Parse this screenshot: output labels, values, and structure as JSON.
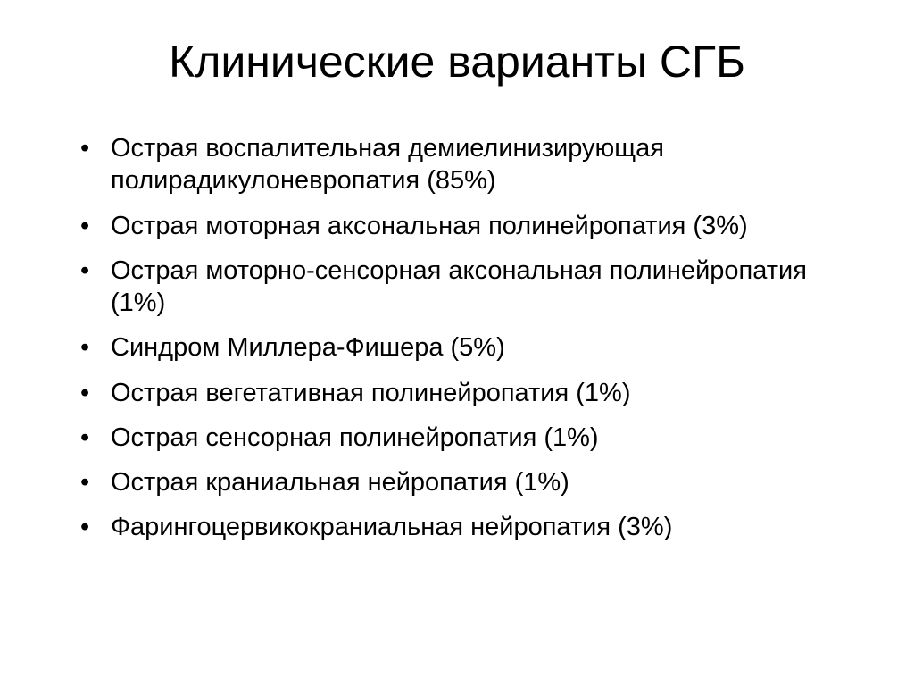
{
  "slide": {
    "title": "Клинические варианты СГБ",
    "title_fontsize": 50,
    "title_align": "center",
    "bullets": [
      "Острая воспалительная демиелинизирующая полирадикулоневропатия (85%)",
      "Острая моторная аксональная полинейропатия (3%)",
      "Острая моторно-сенсорная аксональная полинейропатия (1%)",
      "Синдром Миллера-Фишера (5%)",
      "Острая вегетативная полинейропатия (1%)",
      "Острая сенсорная полинейропатия (1%)",
      "Острая краниальная нейропатия (1%)",
      "Фарингоцервикокраниальная нейропатия (3%)"
    ],
    "bullet_fontsize": 29,
    "bullet_marker": "•",
    "text_color": "#000000",
    "background_color": "#ffffff",
    "font_family": "Arial"
  }
}
